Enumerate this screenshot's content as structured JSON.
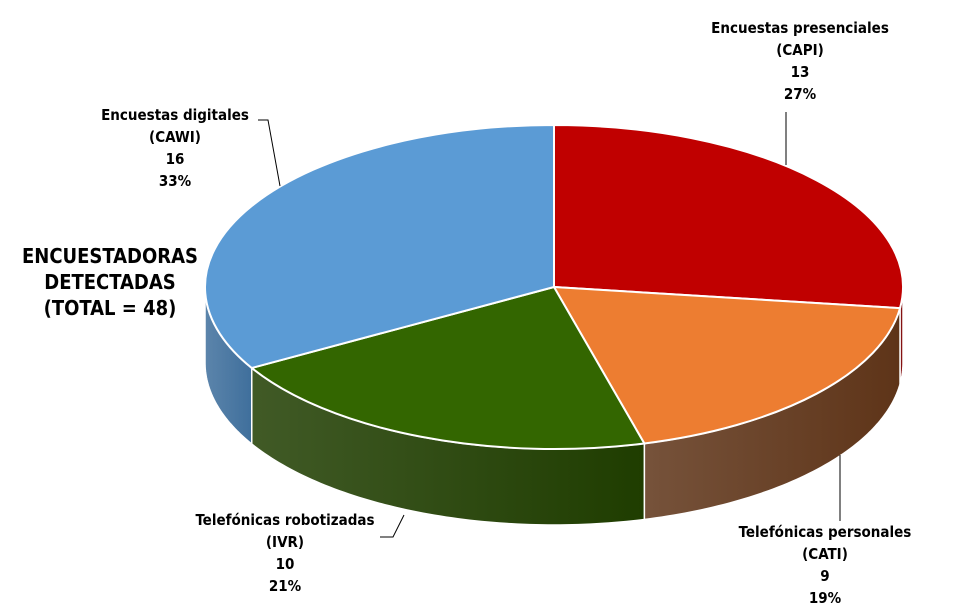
{
  "chart_data": {
    "type": "pie",
    "style": "3d",
    "title_lines": [
      "ENCUESTADORAS",
      "DETECTADAS",
      "(TOTAL = 48)"
    ],
    "slices": [
      {
        "name_lines": [
          "Encuestas presenciales",
          "(CAPI)"
        ],
        "value": 13,
        "percent": "27%",
        "color": "#C00000",
        "side_color": "#7a0000"
      },
      {
        "name_lines": [
          "Telefónicas personales",
          "(CATI)"
        ],
        "value": 9,
        "percent": "19%",
        "color": "#ED7D31",
        "side_color": "#5e3418"
      },
      {
        "name_lines": [
          "Telefónicas robotizadas",
          "(IVR)"
        ],
        "value": 10,
        "percent": "21%",
        "color": "#336600",
        "side_color": "#1f3d00"
      },
      {
        "name_lines": [
          "Encuestas digitales",
          "(CAWI)"
        ],
        "value": 16,
        "percent": "33%",
        "color": "#5B9BD5",
        "side_color": "#3f6f9c"
      }
    ],
    "start": "top",
    "direction": "clockwise",
    "legend": "none"
  }
}
